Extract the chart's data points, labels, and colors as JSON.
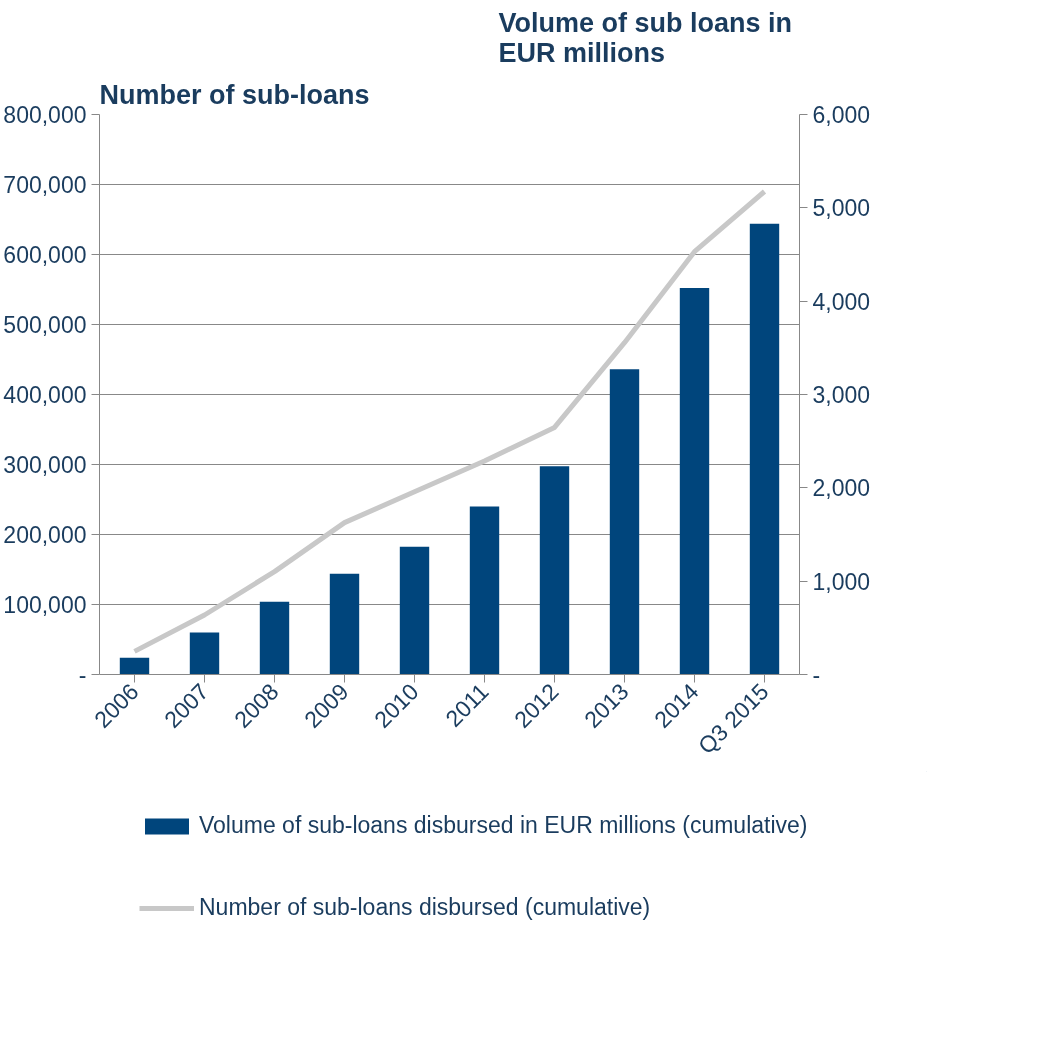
{
  "chart_data": {
    "type": "bar",
    "ylabel": "Number of sub-loans",
    "y2label": "Volume  of sub loans in EUR millions",
    "categories": [
      "2006",
      "2007",
      "2008",
      "2009",
      "2010",
      "2011",
      "2012",
      "2013",
      "2014",
      "Q3 2015"
    ],
    "series": [
      {
        "name": "Volume of sub-loans disbursed in EUR millions (cumulative)",
        "axis": "y2",
        "color": "#00457c",
        "values": [
          180,
          450,
          780,
          1080,
          1370,
          1800,
          2230,
          3270,
          4140,
          4830
        ]
      },
      {
        "name": "Number of sub-loans disbursed (cumulative)",
        "type": "line",
        "color": "#c8c8c8",
        "values": [
          33000,
          85000,
          147000,
          217000,
          261000,
          305000,
          353000,
          474000,
          604000,
          690000
        ]
      }
    ],
    "ylim": [
      0,
      800000
    ],
    "yticks": [
      {
        "value": 0,
        "label": "-"
      },
      {
        "value": 100000,
        "label": "100,000"
      },
      {
        "value": 200000,
        "label": "200,000"
      },
      {
        "value": 300000,
        "label": "300,000"
      },
      {
        "value": 400000,
        "label": "400,000"
      },
      {
        "value": 500000,
        "label": "500,000"
      },
      {
        "value": 600000,
        "label": "600,000"
      },
      {
        "value": 700000,
        "label": "700,000"
      },
      {
        "value": 800000,
        "label": "800,000"
      }
    ],
    "y2lim": [
      0,
      6000
    ],
    "y2ticks": [
      {
        "value": 0,
        "label": "-"
      },
      {
        "value": 1000,
        "label": "1,000"
      },
      {
        "value": 2000,
        "label": "2,000"
      },
      {
        "value": 3000,
        "label": "3,000"
      },
      {
        "value": 4000,
        "label": "4,000"
      },
      {
        "value": 5000,
        "label": "5,000"
      },
      {
        "value": 6000,
        "label": "6,000"
      }
    ],
    "grid": "y",
    "legend": "bottom"
  }
}
